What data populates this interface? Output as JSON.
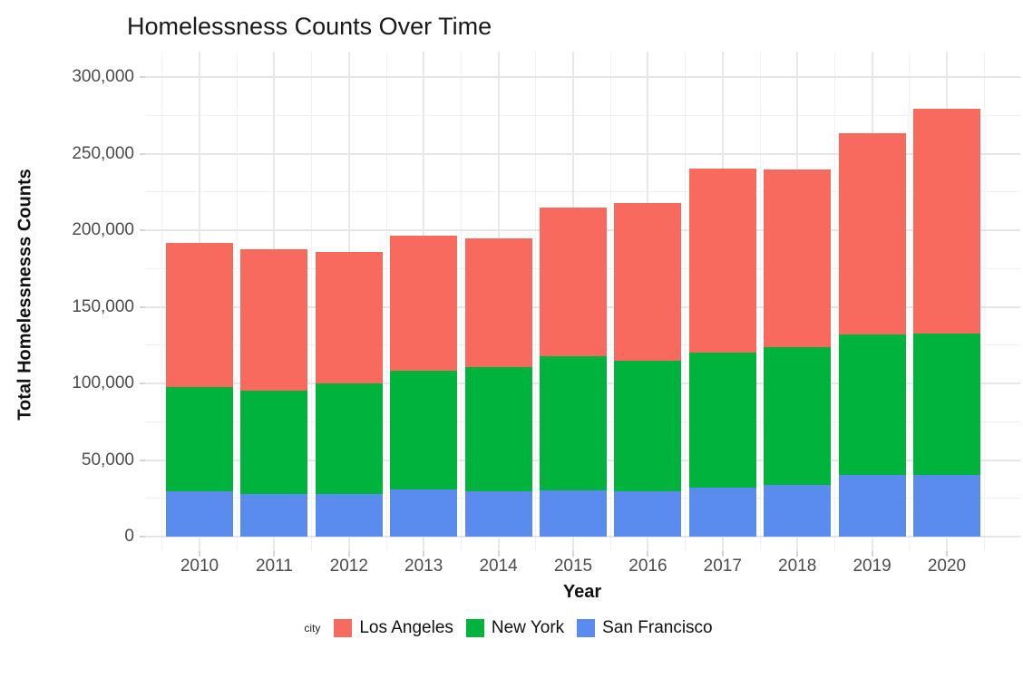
{
  "chart_data": {
    "type": "bar",
    "stacked": true,
    "title": "Homelessness Counts Over Time",
    "xlabel": "Year",
    "ylabel": "Total Homelessnesss Counts",
    "legend_title": "city",
    "legend_position": "bottom",
    "grid": true,
    "categories": [
      "2010",
      "2011",
      "2012",
      "2013",
      "2014",
      "2015",
      "2016",
      "2017",
      "2018",
      "2019",
      "2020"
    ],
    "series": [
      {
        "name": "San Francisco",
        "color": "#5a8cf0",
        "values": [
          29500,
          28000,
          28000,
          31000,
          29500,
          30000,
          29500,
          32000,
          33500,
          40500,
          40000
        ]
      },
      {
        "name": "New York",
        "color": "#00b33c",
        "values": [
          68000,
          67500,
          72000,
          77000,
          81000,
          88000,
          85500,
          88000,
          90000,
          91500,
          92500
        ]
      },
      {
        "name": "Los Angeles",
        "color": "#f8695e",
        "values": [
          94000,
          92000,
          86000,
          88500,
          84000,
          97000,
          102500,
          120000,
          116000,
          131500,
          146500
        ]
      }
    ],
    "totals": [
      191500,
      187500,
      186000,
      196500,
      194500,
      215000,
      217500,
      240000,
      239500,
      263500,
      279000
    ],
    "stack_order_bottom_to_top": [
      "San Francisco",
      "New York",
      "Los Angeles"
    ],
    "legend_order": [
      "Los Angeles",
      "New York",
      "San Francisco"
    ],
    "ylim": [
      0,
      300000
    ],
    "ytick_step": 50000,
    "yticks": [
      "0",
      "50,000",
      "100,000",
      "150,000",
      "200,000",
      "250,000",
      "300,000"
    ]
  },
  "colors": {
    "grid_major": "#e6e6e6",
    "grid_minor": "#f0f0f0",
    "axis_text": "#4d4d4d",
    "title_text": "#1a1a1a"
  }
}
